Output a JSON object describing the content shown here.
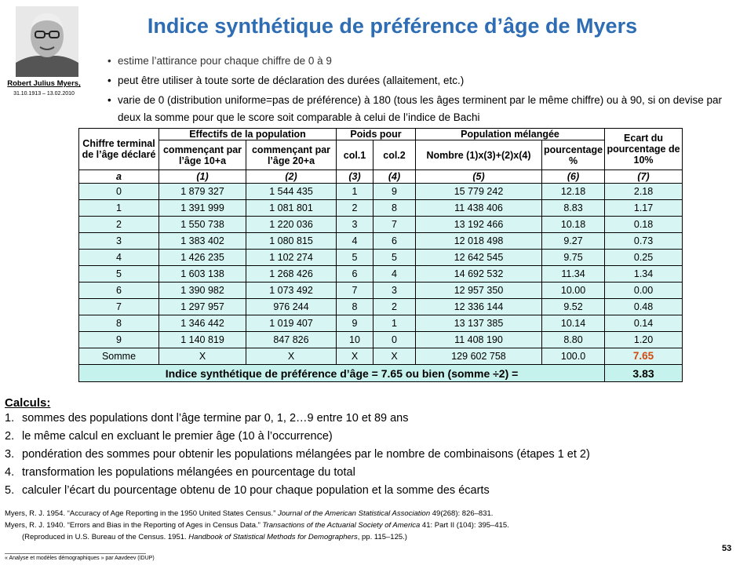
{
  "photo_caption": {
    "name": "Robert Julius Myers,",
    "dates": "31.10.1913 – 13.02.2010"
  },
  "title": "Indice synthétique de préférence d’âge de Myers",
  "bullets": [
    "estime l’attirance pour chaque chiffre de 0 à 9",
    "peut être utiliser à toute sorte de déclaration des durées (allaitement, etc.)",
    "varie de 0 (distribution uniforme=pas de préférence) à 180 (tous les âges terminent par le même chiffre) ou à 90, si on devise par deux la somme pour que le score soit comparable à celui de l’indice de Bachi"
  ],
  "table": {
    "header_row1": [
      "Chiffre terminal de l’âge déclaré",
      "Effectifs de la population",
      "Poids pour",
      "Population mélangée",
      "Ecart du pourcentage de 10%"
    ],
    "header_row2": [
      "commençant par l’âge 10+a",
      "commençant par l’âge 20+a",
      "col.1",
      "col.2",
      "Nombre (1)x(3)+(2)x(4)",
      "pourcentage %"
    ],
    "header_row3": [
      "a",
      "(1)",
      "(2)",
      "(3)",
      "(4)",
      "(5)",
      "(6)",
      "(7)"
    ],
    "rows": [
      [
        "0",
        "1 879 327",
        "1 544 435",
        "1",
        "9",
        "15 779 242",
        "12.18",
        "2.18"
      ],
      [
        "1",
        "1 391 999",
        "1 081 801",
        "2",
        "8",
        "11 438 406",
        "8.83",
        "1.17"
      ],
      [
        "2",
        "1 550 738",
        "1 220 036",
        "3",
        "7",
        "13 192 466",
        "10.18",
        "0.18"
      ],
      [
        "3",
        "1 383 402",
        "1 080 815",
        "4",
        "6",
        "12 018 498",
        "9.27",
        "0.73"
      ],
      [
        "4",
        "1 426 235",
        "1 102 274",
        "5",
        "5",
        "12 642 545",
        "9.75",
        "0.25"
      ],
      [
        "5",
        "1 603 138",
        "1 268 426",
        "6",
        "4",
        "14 692 532",
        "11.34",
        "1.34"
      ],
      [
        "6",
        "1 390 982",
        "1 073 492",
        "7",
        "3",
        "12 957 350",
        "10.00",
        "0.00"
      ],
      [
        "7",
        "1 297 957",
        "976 244",
        "8",
        "2",
        "12 336 144",
        "9.52",
        "0.48"
      ],
      [
        "8",
        "1 346 442",
        "1 019 407",
        "9",
        "1",
        "13 137 385",
        "10.14",
        "0.14"
      ],
      [
        "9",
        "1 140 819",
        "847 826",
        "10",
        "0",
        "11 408 190",
        "8.80",
        "1.20"
      ]
    ],
    "sum_row": [
      "Somme",
      "X",
      "X",
      "X",
      "X",
      "129 602 758",
      "100.0",
      "7.65"
    ],
    "final_row": {
      "label": "Indice synthétique de préférence d’âge = 7.65 ou bien (somme ÷2) =",
      "value": "3.83"
    }
  },
  "calculs": {
    "title": "Calculs:",
    "steps": [
      {
        "number": "1.",
        "text": "sommes des populations dont l’âge termine par 0, 1, 2…9 entre 10 et 89 ans"
      },
      {
        "number": "2.",
        "text": "le même calcul en excluant le premier âge (10 à l’occurrence)"
      },
      {
        "number": "3.",
        "text": "pondération des sommes pour obtenir les populations mélangées par le nombre de combinaisons (étapes 1 et 2)"
      },
      {
        "number": "4.",
        "text": "transformation les populations mélangées en pourcentage du total"
      },
      {
        "number": "5.",
        "text": "calculer l’écart du pourcentage obtenu de 10 pour chaque population et la somme des écarts"
      }
    ]
  },
  "references": [
    [
      "Myers, R. J. 1954. “Accuracy of Age Reporting in the 1950 United States Census.” ",
      "Journal of the American Statistical Association",
      " 49(268): 826–831."
    ],
    [
      "Myers, R. J. 1940. “Errors and Bias in the Reporting of Ages in Census Data.” ",
      "Transactions of the Actuarial Society of America",
      " 41: Part II (104): 395–415."
    ],
    [
      "(Reproduced in U.S. Bureau of the Census. 1951. ",
      "Handbook of Statistical Methods for Demographers",
      ", pp. 115–125.)"
    ]
  ],
  "footer": "« Analyse et modèles démographiques » par Aavdeev (IDUP)",
  "page_number": "53"
}
